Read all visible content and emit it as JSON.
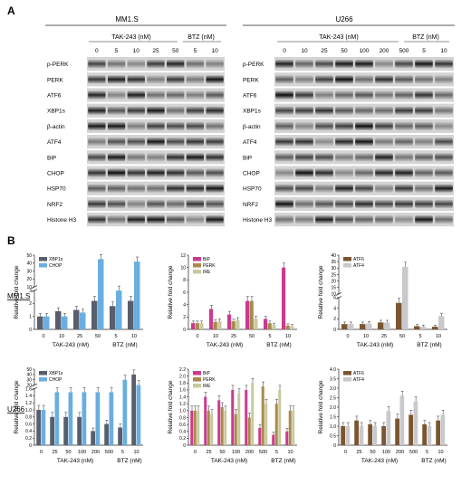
{
  "panel_a": {
    "letter": "A",
    "left": {
      "cell_line": "MM1.S",
      "drug1": "TAK-243 (nM)",
      "drug2": "BTZ (nM)",
      "doses": [
        "0",
        "5",
        "10",
        "25",
        "50",
        "5",
        "10"
      ],
      "rows": [
        "p-PERK",
        "PERK",
        "ATF6",
        "XBP1s",
        "β-actin",
        "ATF4",
        "BiP",
        "CHOP",
        "HSP70",
        "NRF2",
        "Histone H3"
      ]
    },
    "right": {
      "cell_line": "U266",
      "drug1": "TAK-243 (nM)",
      "drug2": "BTZ (nM)",
      "doses": [
        "0",
        "10",
        "25",
        "50",
        "100",
        "200",
        "500",
        "5",
        "10"
      ],
      "rows": [
        "p-PERK",
        "PERK",
        "ATF6",
        "XBP1s",
        "β-actin",
        "ATF4",
        "BiP",
        "CHOP",
        "HSP70",
        "NRF2",
        "Histone H3"
      ]
    }
  },
  "panel_b": {
    "letter": "B",
    "row_labels": [
      "MM1.S",
      "U266"
    ],
    "ylabel": "Relative fold change",
    "xlabel_tak": "TAK-243 (nM)",
    "xlabel_btz": "BTZ (nM)"
  },
  "chart_data": [
    {
      "type": "bar",
      "id": "mm1s-xbp1s-chop",
      "categories": [
        "0",
        "10",
        "25",
        "50",
        "5",
        "10"
      ],
      "series": [
        {
          "name": "XBP1s",
          "values": [
            1.0,
            1.4,
            1.5,
            2.2,
            1.8,
            2.2
          ],
          "color": "#585e6b"
        },
        {
          "name": "CHOP",
          "values": [
            1.0,
            1.0,
            1.3,
            45,
            3.0,
            42
          ],
          "color": "#6aaee0"
        }
      ],
      "yticks": [
        "0",
        "1",
        "2",
        "3",
        "10",
        "20",
        "30",
        "40",
        "50"
      ],
      "axis_break": true,
      "ylabel": "Relative fold change",
      "legend": "top-left"
    },
    {
      "type": "bar",
      "id": "mm1s-bip-perk-ire",
      "categories": [
        "0",
        "10",
        "25",
        "50",
        "5",
        "10"
      ],
      "series": [
        {
          "name": "BiP",
          "values": [
            1.0,
            3.3,
            2.4,
            4.6,
            1.7,
            10.0
          ],
          "color": "#cb3a8f"
        },
        {
          "name": "PERK",
          "values": [
            1.0,
            1.2,
            1.3,
            4.6,
            1.0,
            0.6
          ],
          "color": "#a88a4c"
        },
        {
          "name": "IRE",
          "values": [
            1.0,
            1.3,
            1.5,
            1.7,
            0.7,
            0.5
          ],
          "color": "#c8c9a0"
        }
      ],
      "yticks": [
        "0",
        "2",
        "4",
        "6",
        "8",
        "10",
        "12"
      ],
      "ylabel": "Relative fold change",
      "legend": "top-left"
    },
    {
      "type": "bar",
      "id": "mm1s-atf6-atf4",
      "categories": [
        "0",
        "10",
        "25",
        "50",
        "5",
        "10"
      ],
      "series": [
        {
          "name": "ATF6",
          "values": [
            1.0,
            1.0,
            1.3,
            5.0,
            0.6,
            0.5
          ],
          "color": "#7a5530"
        },
        {
          "name": "ATF4",
          "values": [
            1.0,
            1.1,
            1.3,
            31,
            0.5,
            2.5
          ],
          "color": "#c9c9cd"
        }
      ],
      "yticks": [
        "0",
        "2",
        "4",
        "6",
        "10",
        "15",
        "20",
        "25",
        "30",
        "35",
        "40"
      ],
      "axis_break": true,
      "ylabel": "Relative fold change",
      "legend": "top-left"
    },
    {
      "type": "bar",
      "id": "u266-xbp1s-chop",
      "categories": [
        "0",
        "25",
        "50",
        "100",
        "200",
        "500",
        "5",
        "10"
      ],
      "series": [
        {
          "name": "XBP1s",
          "values": [
            1.0,
            0.8,
            0.8,
            0.8,
            0.4,
            0.6,
            0.5,
            40
          ],
          "color": "#585e6b"
        },
        {
          "name": "CHOP",
          "values": [
            1.0,
            1.5,
            1.5,
            1.5,
            1.5,
            1.5,
            30,
            20
          ],
          "color": "#6aaee0"
        }
      ],
      "yticks": [
        "0",
        "0.2",
        "0.4",
        "0.6",
        "0.8",
        "1.0",
        "1.2",
        "1.4",
        "1.6",
        "20",
        "30",
        "40",
        "50"
      ],
      "axis_break": true,
      "ylabel": "Relative fold change",
      "legend": "top-left"
    },
    {
      "type": "bar",
      "id": "u266-bip-perk-ire",
      "categories": [
        "0",
        "25",
        "50",
        "100",
        "200",
        "500",
        "5",
        "10"
      ],
      "series": [
        {
          "name": "BiP",
          "values": [
            1.0,
            1.4,
            1.3,
            1.6,
            1.6,
            0.5,
            0.3,
            0.4
          ],
          "color": "#cb3a8f"
        },
        {
          "name": "PERK",
          "values": [
            1.0,
            1.0,
            1.1,
            0.9,
            0.8,
            1.7,
            1.2,
            1.0
          ],
          "color": "#a88a4c"
        },
        {
          "name": "IRE",
          "values": [
            1.0,
            0.9,
            1.0,
            1.5,
            1.8,
            1.2,
            1.6,
            1.0
          ],
          "color": "#c8c9a0"
        }
      ],
      "yticks": [
        "0",
        "0.2",
        "0.4",
        "0.6",
        "0.8",
        "1.0",
        "1.2",
        "1.4",
        "1.6",
        "1.8",
        "2.0",
        "2.2"
      ],
      "ylabel": "Relative fold change",
      "legend": "top-left"
    },
    {
      "type": "bar",
      "id": "u266-atf6-atf4",
      "categories": [
        "0",
        "25",
        "50",
        "100",
        "200",
        "500",
        "5",
        "10"
      ],
      "series": [
        {
          "name": "ATF6",
          "values": [
            1.0,
            1.3,
            1.1,
            1.0,
            1.4,
            1.6,
            1.1,
            1.3
          ],
          "color": "#7a5530"
        },
        {
          "name": "ATF4",
          "values": [
            1.0,
            1.0,
            1.0,
            1.8,
            2.6,
            2.3,
            1.0,
            1.6
          ],
          "color": "#c9c9cd"
        }
      ],
      "yticks": [
        "0",
        "0.5",
        "1.0",
        "1.5",
        "2.0",
        "2.5",
        "3.0",
        "3.5",
        "4.0"
      ],
      "ylabel": "Relative fold change",
      "legend": "top-left"
    }
  ]
}
